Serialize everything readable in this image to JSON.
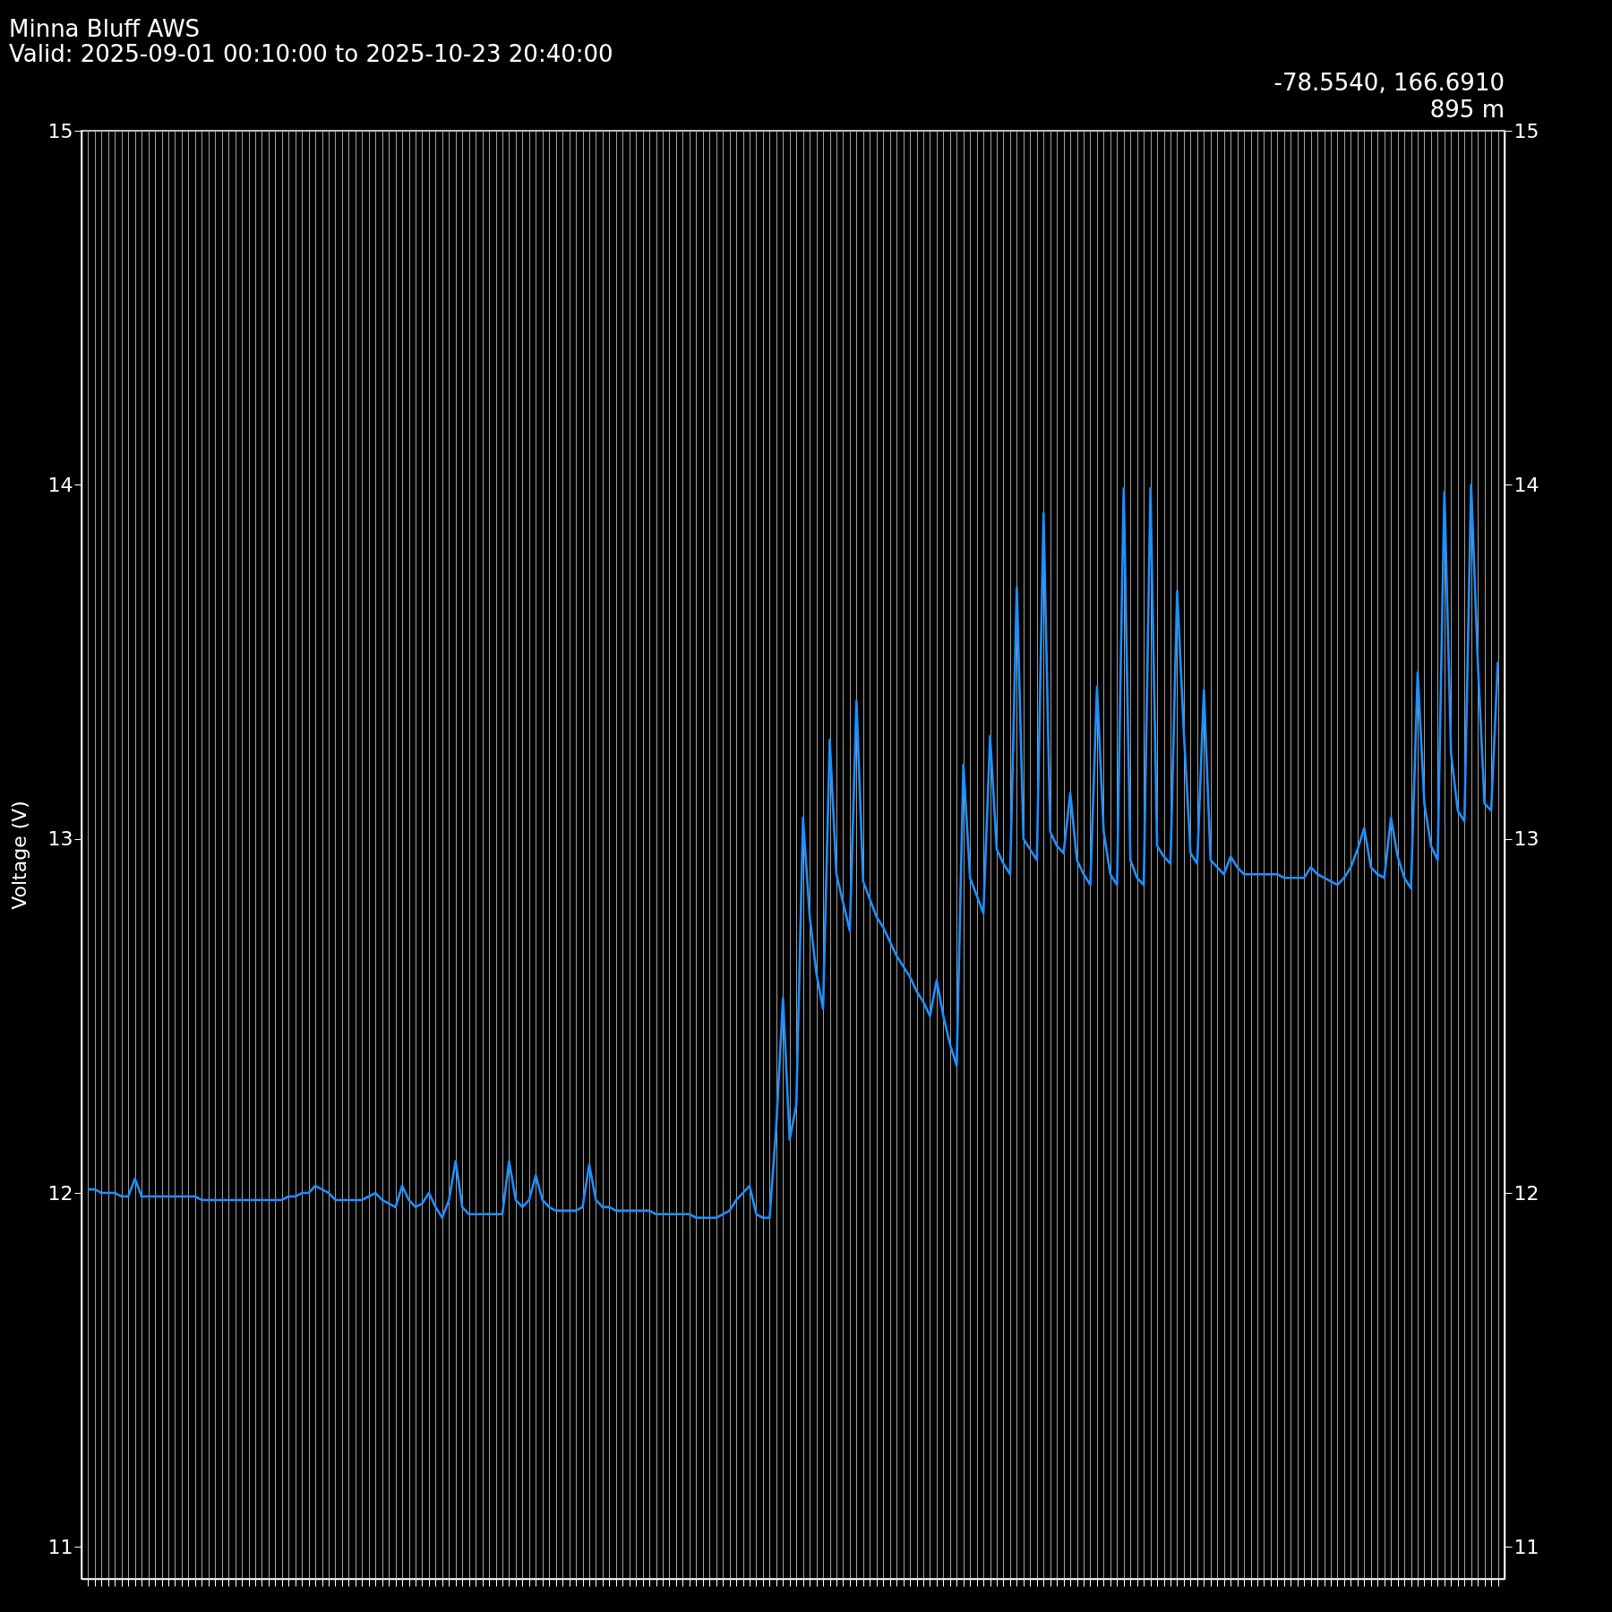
{
  "chart_data": {
    "type": "line",
    "title": "Minna Bluff AWS",
    "subtitle": "Valid: 2025-09-01 00:10:00 to 2025-10-23 20:40:00",
    "ylabel": "Voltage (V)",
    "annotations": [
      "-78.5540, 166.6910",
      "895 m"
    ],
    "categories": [
      null,
      null,
      null,
      null,
      null,
      null,
      null,
      null,
      null,
      null,
      null,
      null,
      null,
      null,
      null,
      null,
      null,
      null,
      null,
      null,
      null,
      null,
      null,
      null,
      null,
      null,
      null,
      null,
      null,
      null,
      null,
      null,
      null,
      null,
      null,
      null,
      null,
      null,
      null,
      null,
      null,
      null,
      null,
      null,
      null,
      null,
      null,
      null,
      null,
      null,
      null,
      null,
      null,
      null,
      null,
      null,
      null,
      null,
      null,
      null,
      null,
      null,
      null,
      null,
      null,
      null,
      null,
      null,
      null,
      null,
      null,
      null,
      null,
      null,
      null,
      null,
      null,
      null,
      null,
      null,
      null,
      null,
      null,
      null,
      null,
      null,
      null,
      null,
      null,
      null,
      null,
      null,
      null,
      null,
      null,
      null,
      null,
      null,
      null,
      null,
      null,
      null,
      null,
      null,
      null,
      null,
      null,
      null,
      null,
      null,
      null,
      null,
      null,
      null,
      null,
      null,
      null,
      null,
      null,
      null,
      null,
      null,
      null,
      null,
      null,
      null,
      null,
      null,
      null,
      null,
      null,
      null,
      null,
      null,
      null,
      null,
      null,
      null,
      null,
      null,
      null,
      null,
      null,
      null,
      null,
      null,
      null,
      null,
      null,
      null,
      null,
      null,
      null,
      null,
      null,
      null,
      null,
      null,
      null,
      null,
      null,
      null,
      null,
      null,
      null,
      null,
      null,
      null,
      null,
      null,
      null,
      null,
      null,
      null,
      null,
      null,
      null,
      null,
      null,
      null,
      null,
      null,
      null,
      null,
      null,
      null,
      null,
      null,
      null,
      null,
      null,
      null,
      null,
      null,
      null,
      null,
      null,
      null,
      null,
      null,
      null,
      null,
      null,
      null,
      null,
      null,
      null,
      null,
      null,
      null,
      null,
      null
    ],
    "values": [
      12.01,
      12.01,
      12.0,
      12.0,
      12.0,
      11.99,
      11.99,
      12.04,
      11.99,
      11.99,
      11.99,
      11.99,
      11.99,
      11.99,
      11.99,
      11.99,
      11.99,
      11.98,
      11.98,
      11.98,
      11.98,
      11.98,
      11.98,
      11.98,
      11.98,
      11.98,
      11.98,
      11.98,
      11.98,
      11.98,
      11.99,
      11.99,
      12.0,
      12.0,
      12.02,
      12.01,
      12.0,
      11.98,
      11.98,
      11.98,
      11.98,
      11.98,
      11.99,
      12.0,
      11.98,
      11.97,
      11.96,
      12.02,
      11.98,
      11.96,
      11.97,
      12.0,
      11.96,
      11.93,
      11.98,
      12.09,
      11.96,
      11.94,
      11.94,
      11.94,
      11.94,
      11.94,
      11.94,
      12.09,
      11.98,
      11.96,
      11.98,
      12.05,
      11.98,
      11.96,
      11.95,
      11.95,
      11.95,
      11.95,
      11.96,
      12.08,
      11.98,
      11.96,
      11.96,
      11.95,
      11.95,
      11.95,
      11.95,
      11.95,
      11.95,
      11.94,
      11.94,
      11.94,
      11.94,
      11.94,
      11.94,
      11.93,
      11.93,
      11.93,
      11.93,
      11.94,
      11.95,
      11.98,
      12.0,
      12.02,
      11.94,
      11.93,
      11.93,
      12.19,
      12.55,
      12.15,
      12.25,
      13.06,
      12.78,
      12.62,
      12.52,
      13.28,
      12.9,
      12.82,
      12.74,
      13.39,
      12.88,
      12.83,
      12.78,
      12.75,
      12.71,
      12.67,
      12.64,
      12.61,
      12.57,
      12.54,
      12.5,
      12.6,
      12.5,
      12.42,
      12.36,
      13.21,
      12.89,
      12.84,
      12.79,
      13.29,
      12.97,
      12.93,
      12.9,
      13.71,
      13.0,
      12.97,
      12.94,
      13.92,
      13.02,
      12.98,
      12.96,
      13.13,
      12.94,
      12.9,
      12.87,
      13.43,
      13.02,
      12.9,
      12.87,
      13.99,
      12.94,
      12.89,
      12.87,
      13.99,
      12.98,
      12.95,
      12.93,
      13.7,
      13.3,
      12.96,
      12.93,
      13.42,
      12.94,
      12.92,
      12.9,
      12.95,
      12.92,
      12.9,
      12.9,
      12.9,
      12.9,
      12.9,
      12.9,
      12.89,
      12.89,
      12.89,
      12.89,
      12.92,
      12.9,
      12.89,
      12.88,
      12.87,
      12.89,
      12.92,
      12.97,
      13.03,
      12.92,
      12.9,
      12.89,
      13.06,
      12.95,
      12.89,
      12.86,
      13.47,
      13.1,
      12.98,
      12.94,
      13.98,
      13.24,
      13.08,
      13.05,
      14.0,
      13.5,
      13.1,
      13.08,
      13.5
    ],
    "color": "#1e90ff",
    "line_style": "solid",
    "grid": "x",
    "tick_labels": "y",
    "ylim": [
      10.91,
      15
    ],
    "yticks": [
      11,
      12,
      13,
      14,
      15
    ],
    "y2lim": [
      10.91,
      15
    ],
    "y2ticks": [
      11,
      12,
      13,
      14,
      15
    ]
  }
}
